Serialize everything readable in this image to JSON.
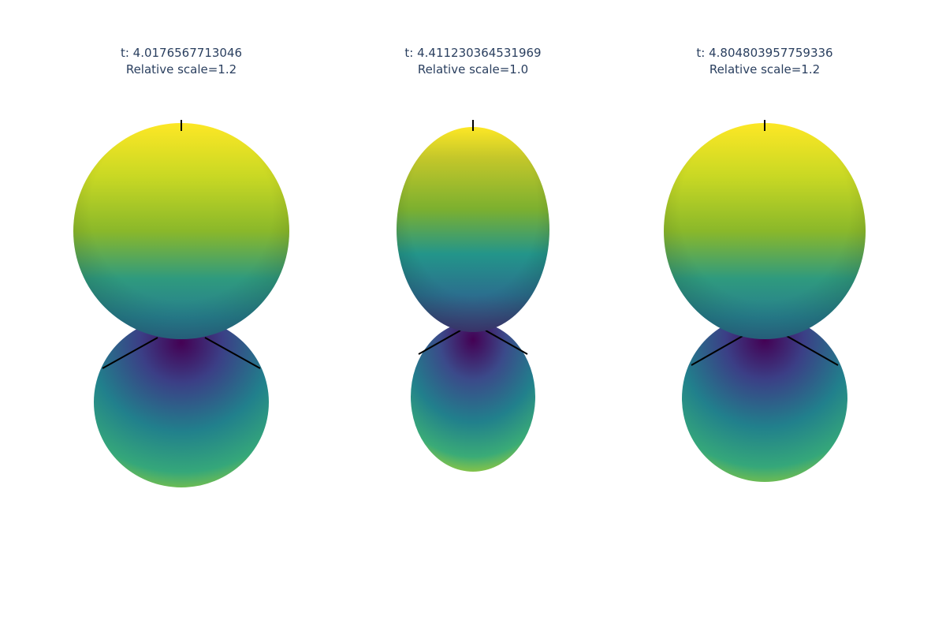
{
  "chart_data": [
    {
      "type": "surface",
      "time_label": "t: 4.0176567713046",
      "scale_label": "Relative scale=1.2",
      "colorscale": "viridis"
    },
    {
      "type": "surface",
      "time_label": "t: 4.411230364531969",
      "scale_label": "Relative scale=1.0",
      "colorscale": "viridis"
    },
    {
      "type": "surface",
      "time_label": "t: 4.804803957759336",
      "scale_label": "Relative scale=1.2",
      "colorscale": "viridis"
    }
  ],
  "colors": {
    "viridis_top": "#fde725",
    "viridis_upper": "#a8c82a",
    "viridis_mid": "#21908c",
    "viridis_low": "#3b528b",
    "viridis_bottom": "#440154",
    "axis_line": "#000000",
    "title_text": "#2a3f5f"
  }
}
